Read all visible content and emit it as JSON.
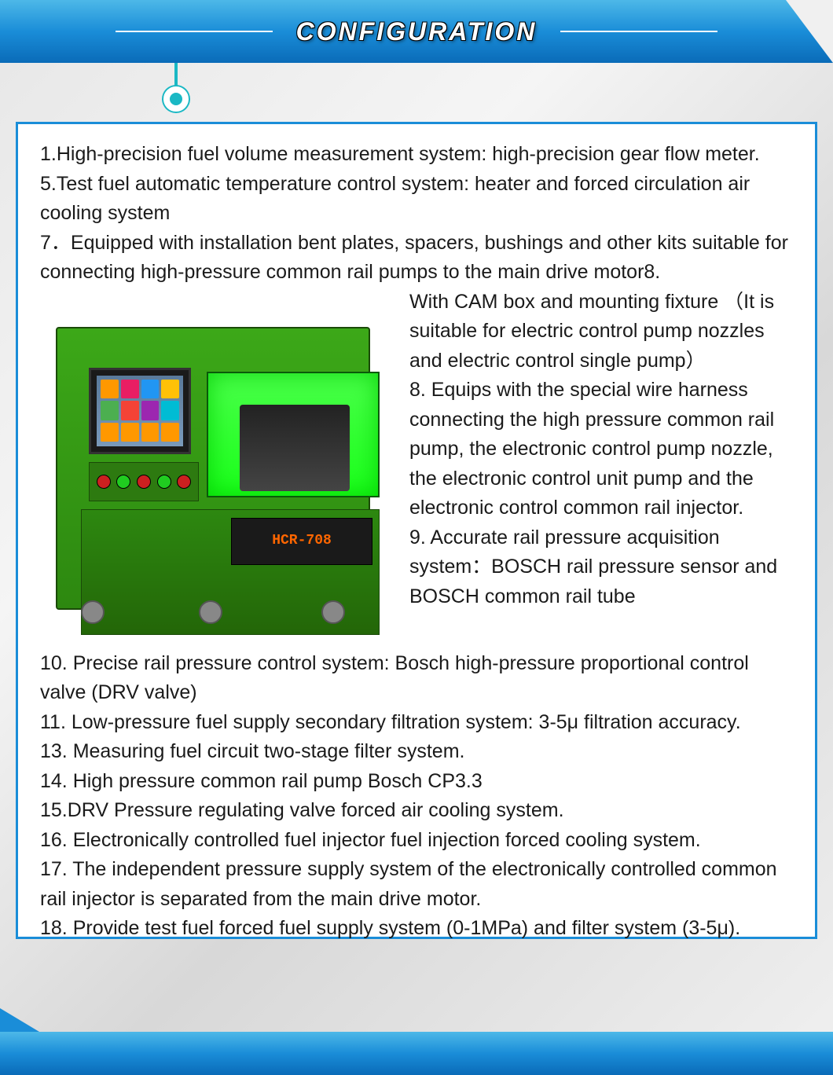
{
  "header": {
    "title": "CONFIGURATION"
  },
  "machine": {
    "model": "HCR-708"
  },
  "specs": {
    "item1": "1.High-precision fuel volume measurement system: high-precision gear flow meter.",
    "item5": "5.Test fuel automatic temperature control system: heater and forced circulation air cooling system",
    "item7": "7．Equipped with installation bent plates, spacers, bushings and other kits suitable for connecting high-pressure common rail pumps to the main drive motor8.",
    "cam_note": "With CAM box and mounting fixture （It is suitable for electric control pump nozzles and electric control single pump）",
    "item8": "8. Equips with the special wire harness connecting the high pressure common rail pump, the electronic control pump nozzle, the electronic control unit pump and the electronic control common rail injector.",
    "item9": "9. Accurate rail pressure acquisition system：BOSCH rail pressure sensor and BOSCH common rail tube",
    "item10": "10. Precise rail pressure control system: Bosch high-pressure proportional control valve (DRV valve)",
    "item11": "11. Low-pressure fuel supply secondary filtration system: 3-5μ filtration accuracy.",
    "item13": "13. Measuring fuel circuit two-stage filter system.",
    "item14": "14. High pressure common rail pump Bosch CP3.3",
    "item15": "15.DRV Pressure regulating valve forced air cooling system.",
    "item16": "16. Electronically controlled fuel injector fuel injection forced cooling system.",
    "item17": "17. The independent pressure supply system of the electronically controlled common rail injector is separated from the main drive motor.",
    "item18": "18. Provide test fuel forced fuel supply system (0-1MPa) and filter system (3-5μ)."
  },
  "colors": {
    "banner_gradient_top": "#4db8e8",
    "banner_gradient_bottom": "#0a6bb8",
    "accent": "#1ab8c4",
    "border": "#1a8dd8",
    "machine_green": "#3ca818",
    "model_text": "#ff6600"
  }
}
